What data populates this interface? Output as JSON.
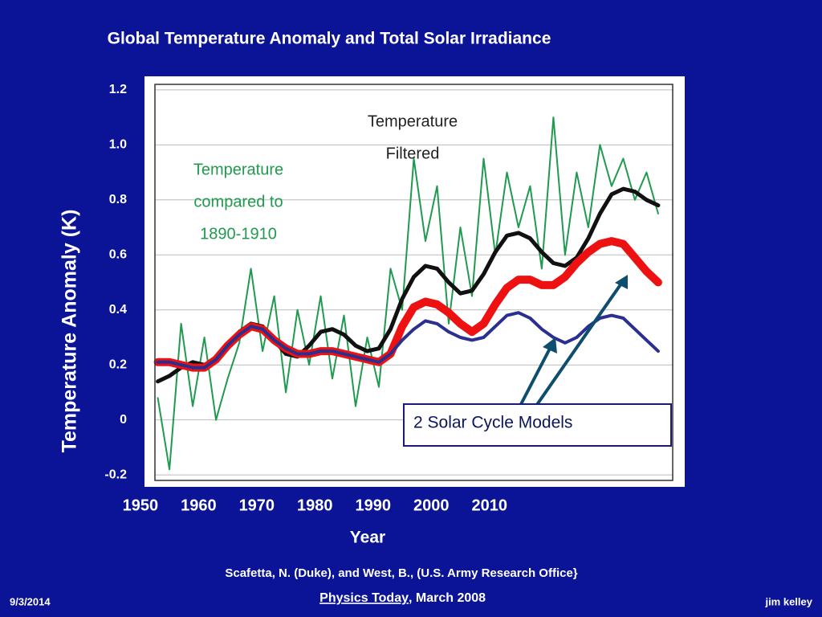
{
  "chart_data": {
    "type": "line",
    "title": "Global  Temperature Anomaly and Total Solar Irradiance",
    "ylabel": "Temperature Anomaly (K)",
    "xlabel": "Year",
    "annotations": {
      "filtered": [
        "Temperature",
        "Filtered"
      ],
      "compared": [
        "Temperature",
        "compared to",
        "1890-1910"
      ],
      "models": "2 Solar Cycle Models"
    },
    "xlim": [
      1952.5,
      2041.5
    ],
    "xticks": [
      1950,
      1960,
      1970,
      1980,
      1990,
      2000,
      2010
    ],
    "ylim": [
      -0.22,
      1.22
    ],
    "yticks": [
      1.2,
      {
        "value": 1,
        "label": "1.0"
      },
      0.8,
      0.6,
      0.4,
      0.2,
      0,
      -0.2
    ],
    "grid": true,
    "x": [
      1953,
      1955,
      1957,
      1959,
      1961,
      1963,
      1965,
      1967,
      1969,
      1971,
      1973,
      1975,
      1977,
      1979,
      1981,
      1983,
      1985,
      1987,
      1989,
      1991,
      1993,
      1995,
      1997,
      1999,
      2001,
      2003,
      2005,
      2007,
      2009,
      2011,
      2013,
      2015,
      2017,
      2019,
      2021,
      2023,
      2025,
      2027,
      2029,
      2031,
      2033,
      2035,
      2037,
      2039
    ],
    "series": [
      {
        "color": "#1f9a4e",
        "width": 2,
        "values": [
          0.08,
          -0.18,
          0.35,
          0.05,
          0.3,
          0.0,
          0.15,
          0.28,
          0.55,
          0.25,
          0.45,
          0.1,
          0.4,
          0.2,
          0.45,
          0.15,
          0.38,
          0.05,
          0.3,
          0.12,
          0.55,
          0.4,
          0.95,
          0.65,
          0.85,
          0.35,
          0.7,
          0.45,
          0.95,
          0.6,
          0.9,
          0.7,
          0.85,
          0.55,
          1.1,
          0.6,
          0.9,
          0.7,
          1.0,
          0.85,
          0.95,
          0.8,
          0.9,
          0.75
        ]
      },
      {
        "color": "#111111",
        "width": 5,
        "values": [
          0.14,
          0.16,
          0.19,
          0.21,
          0.2,
          0.22,
          0.27,
          0.32,
          0.35,
          0.34,
          0.29,
          0.24,
          0.23,
          0.27,
          0.32,
          0.33,
          0.31,
          0.27,
          0.25,
          0.26,
          0.33,
          0.44,
          0.52,
          0.56,
          0.55,
          0.5,
          0.46,
          0.47,
          0.53,
          0.61,
          0.67,
          0.68,
          0.66,
          0.61,
          0.57,
          0.56,
          0.59,
          0.66,
          0.75,
          0.82,
          0.84,
          0.83,
          0.8,
          0.78
        ]
      },
      {
        "color": "#ee1111",
        "width": 10,
        "values": [
          0.21,
          0.21,
          0.2,
          0.19,
          0.19,
          0.22,
          0.27,
          0.31,
          0.34,
          0.33,
          0.29,
          0.26,
          0.24,
          0.24,
          0.25,
          0.25,
          0.24,
          0.23,
          0.22,
          0.21,
          0.24,
          0.34,
          0.41,
          0.43,
          0.42,
          0.39,
          0.35,
          0.32,
          0.35,
          0.42,
          0.48,
          0.51,
          0.51,
          0.49,
          0.49,
          0.52,
          0.57,
          0.61,
          0.64,
          0.65,
          0.64,
          0.59,
          0.54,
          0.5
        ]
      },
      {
        "color": "#2b2f8f",
        "width": 4,
        "values": [
          0.21,
          0.21,
          0.2,
          0.19,
          0.19,
          0.22,
          0.27,
          0.31,
          0.34,
          0.33,
          0.29,
          0.26,
          0.24,
          0.24,
          0.25,
          0.25,
          0.24,
          0.23,
          0.22,
          0.21,
          0.24,
          0.29,
          0.33,
          0.36,
          0.35,
          0.32,
          0.3,
          0.29,
          0.3,
          0.34,
          0.38,
          0.39,
          0.37,
          0.33,
          0.3,
          0.28,
          0.3,
          0.34,
          0.37,
          0.38,
          0.37,
          0.33,
          0.29,
          0.25
        ]
      }
    ]
  },
  "footer": {
    "citation": "Scafetta, N. (Duke),  and West,  B., (U.S. Army Research Office}",
    "journal": "Physics Today",
    "date_suffix": ", March 2008",
    "slide_date": "9/3/2014",
    "author": "jim kelley"
  }
}
